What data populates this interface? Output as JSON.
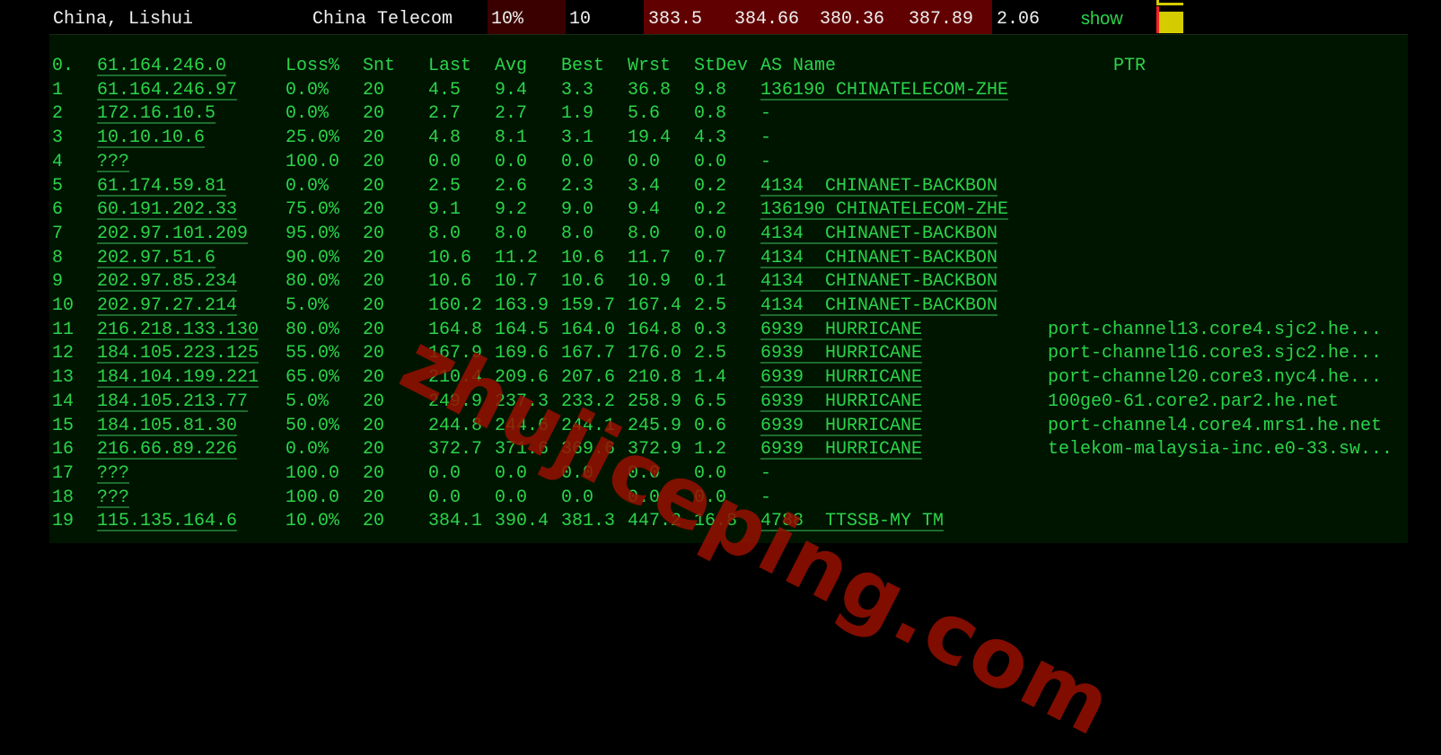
{
  "summary": {
    "location": "China, Lishui",
    "isp": "China Telecom",
    "loss": "10%",
    "sent": "10",
    "last": "383.5",
    "avg": "384.66",
    "best": "380.36",
    "worst": "387.89",
    "stdev": "2.06",
    "action": "show",
    "colors": {
      "loss_bg": "#3a0000",
      "latency_bg": "#600000",
      "graph": "#d4cc00",
      "marker": "#ff2020"
    }
  },
  "trace": {
    "header": {
      "hop": "0.",
      "host": "61.164.246.0",
      "loss": "Loss%",
      "snt": "Snt",
      "last": "Last",
      "avg": "Avg",
      "best": "Best",
      "wrst": "Wrst",
      "stdev": "StDev",
      "as": "AS Name",
      "ptr": "PTR"
    },
    "rows": [
      {
        "hop": "1",
        "host": "61.164.246.97",
        "loss": "0.0%",
        "snt": "20",
        "last": "4.5",
        "avg": "9.4",
        "best": "3.3",
        "wrst": "36.8",
        "stdev": "9.8",
        "as": "136190 CHINATELECOM-ZHE",
        "ptr": ""
      },
      {
        "hop": "2",
        "host": "172.16.10.5",
        "loss": "0.0%",
        "snt": "20",
        "last": "2.7",
        "avg": "2.7",
        "best": "1.9",
        "wrst": "5.6",
        "stdev": "0.8",
        "as": "-",
        "ptr": ""
      },
      {
        "hop": "3",
        "host": "10.10.10.6",
        "loss": "25.0%",
        "snt": "20",
        "last": "4.8",
        "avg": "8.1",
        "best": "3.1",
        "wrst": "19.4",
        "stdev": "4.3",
        "as": "-",
        "ptr": ""
      },
      {
        "hop": "4",
        "host": "???",
        "loss": "100.0",
        "snt": "20",
        "last": "0.0",
        "avg": "0.0",
        "best": "0.0",
        "wrst": "0.0",
        "stdev": "0.0",
        "as": "-",
        "ptr": ""
      },
      {
        "hop": "5",
        "host": "61.174.59.81",
        "loss": "0.0%",
        "snt": "20",
        "last": "2.5",
        "avg": "2.6",
        "best": "2.3",
        "wrst": "3.4",
        "stdev": "0.2",
        "as": "4134  CHINANET-BACKBON",
        "ptr": ""
      },
      {
        "hop": "6",
        "host": "60.191.202.33",
        "loss": "75.0%",
        "snt": "20",
        "last": "9.1",
        "avg": "9.2",
        "best": "9.0",
        "wrst": "9.4",
        "stdev": "0.2",
        "as": "136190 CHINATELECOM-ZHE",
        "ptr": ""
      },
      {
        "hop": "7",
        "host": "202.97.101.209",
        "loss": "95.0%",
        "snt": "20",
        "last": "8.0",
        "avg": "8.0",
        "best": "8.0",
        "wrst": "8.0",
        "stdev": "0.0",
        "as": "4134  CHINANET-BACKBON",
        "ptr": ""
      },
      {
        "hop": "8",
        "host": "202.97.51.6",
        "loss": "90.0%",
        "snt": "20",
        "last": "10.6",
        "avg": "11.2",
        "best": "10.6",
        "wrst": "11.7",
        "stdev": "0.7",
        "as": "4134  CHINANET-BACKBON",
        "ptr": ""
      },
      {
        "hop": "9",
        "host": "202.97.85.234",
        "loss": "80.0%",
        "snt": "20",
        "last": "10.6",
        "avg": "10.7",
        "best": "10.6",
        "wrst": "10.9",
        "stdev": "0.1",
        "as": "4134  CHINANET-BACKBON",
        "ptr": ""
      },
      {
        "hop": "10",
        "host": "202.97.27.214",
        "loss": "5.0%",
        "snt": "20",
        "last": "160.2",
        "avg": "163.9",
        "best": "159.7",
        "wrst": "167.4",
        "stdev": "2.5",
        "as": "4134  CHINANET-BACKBON",
        "ptr": ""
      },
      {
        "hop": "11",
        "host": "216.218.133.130",
        "loss": "80.0%",
        "snt": "20",
        "last": "164.8",
        "avg": "164.5",
        "best": "164.0",
        "wrst": "164.8",
        "stdev": "0.3",
        "as": "6939  HURRICANE",
        "ptr": "port-channel13.core4.sjc2.he..."
      },
      {
        "hop": "12",
        "host": "184.105.223.125",
        "loss": "55.0%",
        "snt": "20",
        "last": "167.9",
        "avg": "169.6",
        "best": "167.7",
        "wrst": "176.0",
        "stdev": "2.5",
        "as": "6939  HURRICANE",
        "ptr": "port-channel16.core3.sjc2.he..."
      },
      {
        "hop": "13",
        "host": "184.104.199.221",
        "loss": "65.0%",
        "snt": "20",
        "last": "210.4",
        "avg": "209.6",
        "best": "207.6",
        "wrst": "210.8",
        "stdev": "1.4",
        "as": "6939  HURRICANE",
        "ptr": "port-channel20.core3.nyc4.he..."
      },
      {
        "hop": "14",
        "host": "184.105.213.77",
        "loss": "5.0%",
        "snt": "20",
        "last": "249.9",
        "avg": "237.3",
        "best": "233.2",
        "wrst": "258.9",
        "stdev": "6.5",
        "as": "6939  HURRICANE",
        "ptr": "100ge0-61.core2.par2.he.net"
      },
      {
        "hop": "15",
        "host": "184.105.81.30",
        "loss": "50.0%",
        "snt": "20",
        "last": "244.8",
        "avg": "244.6",
        "best": "244.1",
        "wrst": "245.9",
        "stdev": "0.6",
        "as": "6939  HURRICANE",
        "ptr": "port-channel4.core4.mrs1.he.net"
      },
      {
        "hop": "16",
        "host": "216.66.89.226",
        "loss": "0.0%",
        "snt": "20",
        "last": "372.7",
        "avg": "371.6",
        "best": "369.6",
        "wrst": "372.9",
        "stdev": "1.2",
        "as": "6939  HURRICANE",
        "ptr": "telekom-malaysia-inc.e0-33.sw..."
      },
      {
        "hop": "17",
        "host": "???",
        "loss": "100.0",
        "snt": "20",
        "last": "0.0",
        "avg": "0.0",
        "best": "0.0",
        "wrst": "0.0",
        "stdev": "0.0",
        "as": "-",
        "ptr": ""
      },
      {
        "hop": "18",
        "host": "???",
        "loss": "100.0",
        "snt": "20",
        "last": "0.0",
        "avg": "0.0",
        "best": "0.0",
        "wrst": "0.0",
        "stdev": "0.0",
        "as": "-",
        "ptr": ""
      },
      {
        "hop": "19",
        "host": "115.135.164.6",
        "loss": "10.0%",
        "snt": "20",
        "last": "384.1",
        "avg": "390.4",
        "best": "381.3",
        "wrst": "447.2",
        "stdev": "16.8",
        "as": "4788  TTSSB-MY TM",
        "ptr": ""
      }
    ]
  },
  "watermark": "zhujiceping.com"
}
